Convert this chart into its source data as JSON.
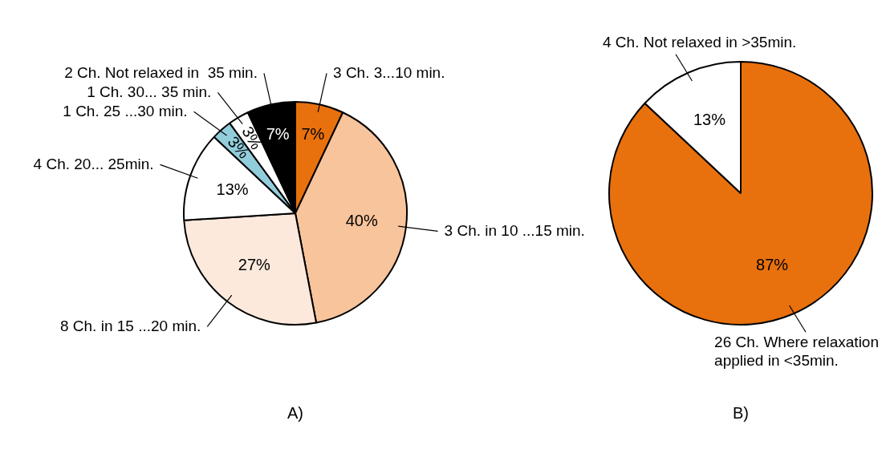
{
  "chart_data": [
    {
      "type": "pie",
      "title": "A)",
      "categories": [
        "3 Ch. 3...10 min.",
        "3 Ch. in 10 ...15 min.",
        "8 Ch. in 15 ...20 min.",
        "4 Ch. 20... 25min.",
        "1 Ch. 25 ...30 min.",
        "1 Ch. 30... 35 min.",
        "2 Ch. Not relaxed in  35 min."
      ],
      "values": [
        7,
        40,
        27,
        13,
        3,
        3,
        7
      ],
      "value_labels": [
        "7%",
        "40%",
        "27%",
        "13%",
        "3%",
        "3%",
        "7%"
      ],
      "colors": [
        "#e8710e",
        "#f8c49c",
        "#fce9dc",
        "#ffffff",
        "#92cddc",
        "#ffffff",
        "#000000"
      ],
      "legend": false
    },
    {
      "type": "pie",
      "title": "B)",
      "categories": [
        "26 Ch. Where relaxation applied in <35min.",
        "4 Ch. Not relaxed in >35min."
      ],
      "values": [
        87,
        13
      ],
      "value_labels": [
        "87%",
        "13%"
      ],
      "colors": [
        "#e8710e",
        "#ffffff"
      ],
      "legend": false
    }
  ]
}
